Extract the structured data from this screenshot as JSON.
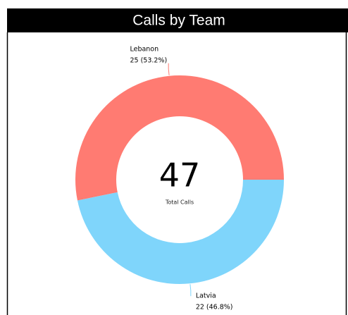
{
  "chart_data": {
    "type": "pie",
    "title": "Calls by Team",
    "categories": [
      "Lebanon",
      "Latvia"
    ],
    "values": [
      25,
      22
    ],
    "value_labels": [
      "25 (53.2%)",
      "22 (46.8%)"
    ],
    "colors": [
      "#ff7b72",
      "#7fd5fb"
    ],
    "center_value": 47,
    "center_label": "Total Calls"
  }
}
